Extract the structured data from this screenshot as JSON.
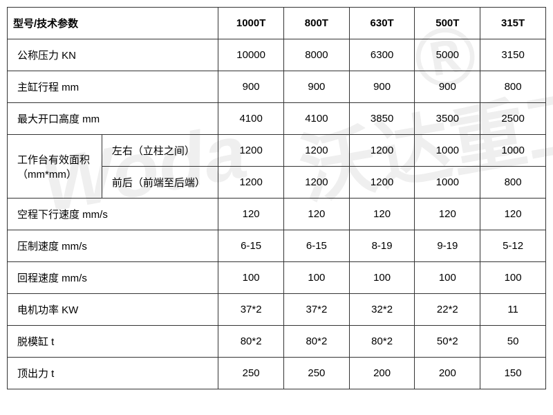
{
  "table": {
    "header": {
      "param_label": "型号/技术参数",
      "cols": [
        "1000T",
        "800T",
        "630T",
        "500T",
        "315T"
      ]
    },
    "rows": [
      {
        "label": "公称压力 KN",
        "values": [
          "10000",
          "8000",
          "6300",
          "5000",
          "3150"
        ]
      },
      {
        "label": "主缸行程 mm",
        "values": [
          "900",
          "900",
          "900",
          "900",
          "800"
        ]
      },
      {
        "label": "最大开口高度 mm",
        "values": [
          "4100",
          "4100",
          "3850",
          "3500",
          "2500"
        ]
      }
    ],
    "group": {
      "label": "工作台有效面积（mm*mm）",
      "subrows": [
        {
          "sublabel": "左右（立柱之间）",
          "values": [
            "1200",
            "1200",
            "1200",
            "1000",
            "1000"
          ]
        },
        {
          "sublabel": "前后（前端至后端）",
          "values": [
            "1200",
            "1200",
            "1200",
            "1000",
            "800"
          ]
        }
      ]
    },
    "rows2": [
      {
        "label": "空程下行速度 mm/s",
        "values": [
          "120",
          "120",
          "120",
          "120",
          "120"
        ]
      },
      {
        "label": "压制速度 mm/s",
        "values": [
          "6-15",
          "6-15",
          "8-19",
          "9-19",
          "5-12"
        ]
      },
      {
        "label": "回程速度 mm/s",
        "values": [
          "100",
          "100",
          "100",
          "100",
          "100"
        ]
      },
      {
        "label": "电机功率 KW",
        "values": [
          "37*2",
          "37*2",
          "32*2",
          "22*2",
          "11"
        ]
      },
      {
        "label": "脱模缸 t",
        "values": [
          "80*2",
          "80*2",
          "80*2",
          "50*2",
          "50"
        ]
      },
      {
        "label": "顶出力 t",
        "values": [
          "250",
          "250",
          "200",
          "200",
          "150"
        ]
      }
    ],
    "col_widths": {
      "param": 130,
      "sub": 160,
      "data": 90
    },
    "colors": {
      "border": "#333333",
      "text": "#000000",
      "background": "#ffffff",
      "watermark": "rgba(150,150,150,0.15)"
    },
    "font_size": 15
  },
  "watermark": {
    "text1": "Woda",
    "text2": "沃达重工",
    "text3": "®"
  }
}
